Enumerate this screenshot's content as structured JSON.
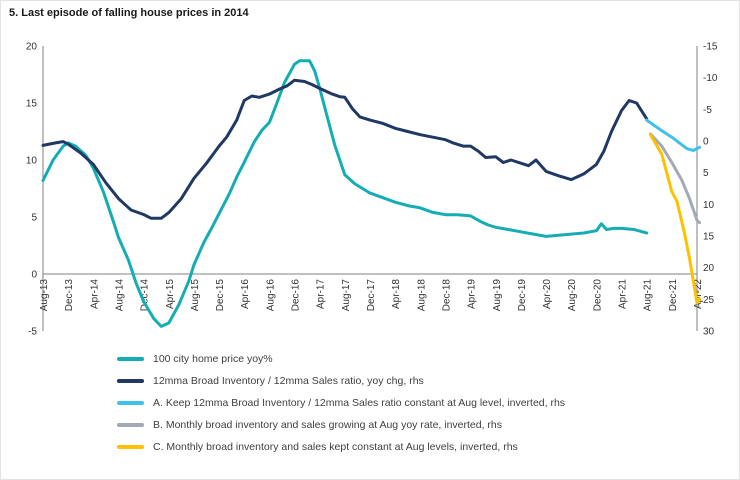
{
  "title": "5. Last episode of falling house prices in 2014",
  "chart_data": {
    "type": "line",
    "title": "5. Last episode of falling house prices in 2014",
    "legend_position": "bottom",
    "grid": false,
    "x_tick_labels": [
      "Aug-13",
      "Dec-13",
      "Apr-14",
      "Aug-14",
      "Dec-14",
      "Apr-15",
      "Aug-15",
      "Dec-15",
      "Apr-16",
      "Aug-16",
      "Dec-16",
      "Apr-17",
      "Aug-17",
      "Dec-17",
      "Apr-18",
      "Aug-18",
      "Dec-18",
      "Apr-19",
      "Aug-19",
      "Dec-19",
      "Apr-20",
      "Aug-20",
      "Dec-20",
      "Apr-21",
      "Aug-21",
      "Dec-21",
      "Apr-22"
    ],
    "left_axis": {
      "ticks": [
        20,
        15,
        10,
        5,
        0,
        -5
      ],
      "max": 20,
      "min": -5
    },
    "right_axis": {
      "ticks": [
        -15,
        -10,
        -5,
        0,
        5,
        10,
        15,
        20,
        25,
        30
      ],
      "max_top": -15,
      "min_bottom": 30,
      "inverted": true
    },
    "series": [
      {
        "name": "100 city home price yoy%",
        "axis": "lhs",
        "color": "#14ADB3",
        "points": [
          [
            0,
            8.2
          ],
          [
            0.4,
            10.0
          ],
          [
            0.8,
            11.2
          ],
          [
            1,
            11.5
          ],
          [
            1.3,
            11.2
          ],
          [
            1.7,
            10.4
          ],
          [
            2,
            9.3
          ],
          [
            2.4,
            7.2
          ],
          [
            2.8,
            4.6
          ],
          [
            3,
            3.2
          ],
          [
            3.4,
            1.2
          ],
          [
            3.7,
            -0.8
          ],
          [
            4,
            -2.4
          ],
          [
            4.4,
            -3.9
          ],
          [
            4.7,
            -4.6
          ],
          [
            5,
            -4.3
          ],
          [
            5.4,
            -2.7
          ],
          [
            5.8,
            -0.6
          ],
          [
            6,
            0.8
          ],
          [
            6.4,
            2.8
          ],
          [
            6.7,
            4.0
          ],
          [
            7,
            5.3
          ],
          [
            7.4,
            7.0
          ],
          [
            7.7,
            8.5
          ],
          [
            8,
            9.8
          ],
          [
            8.4,
            11.6
          ],
          [
            8.7,
            12.6
          ],
          [
            9,
            13.3
          ],
          [
            9.3,
            15.0
          ],
          [
            9.6,
            16.8
          ],
          [
            10,
            18.4
          ],
          [
            10.2,
            18.7
          ],
          [
            10.6,
            18.7
          ],
          [
            10.8,
            17.8
          ],
          [
            11,
            16.3
          ],
          [
            11.3,
            13.8
          ],
          [
            11.6,
            11.3
          ],
          [
            12,
            8.7
          ],
          [
            12.4,
            7.9
          ],
          [
            12.7,
            7.5
          ],
          [
            13,
            7.1
          ],
          [
            13.5,
            6.7
          ],
          [
            14,
            6.3
          ],
          [
            14.5,
            6.0
          ],
          [
            15,
            5.8
          ],
          [
            15.5,
            5.4
          ],
          [
            16,
            5.2
          ],
          [
            16.5,
            5.2
          ],
          [
            17,
            5.1
          ],
          [
            17.4,
            4.6
          ],
          [
            17.7,
            4.3
          ],
          [
            18,
            4.1
          ],
          [
            18.5,
            3.9
          ],
          [
            19,
            3.7
          ],
          [
            19.5,
            3.5
          ],
          [
            20,
            3.3
          ],
          [
            20.5,
            3.4
          ],
          [
            21,
            3.5
          ],
          [
            21.5,
            3.6
          ],
          [
            22,
            3.8
          ],
          [
            22.2,
            4.4
          ],
          [
            22.4,
            3.9
          ],
          [
            22.7,
            4.0
          ],
          [
            23,
            4.0
          ],
          [
            23.5,
            3.9
          ],
          [
            24,
            3.6
          ]
        ]
      },
      {
        "name": "12mma Broad Inventory / 12mma Sales ratio, yoy chg, rhs",
        "axis": "rhs",
        "color": "#1F3864",
        "points": [
          [
            0,
            0.7
          ],
          [
            0.5,
            0.3
          ],
          [
            0.8,
            0.1
          ],
          [
            1,
            0.5
          ],
          [
            1.5,
            1.9
          ],
          [
            2,
            3.7
          ],
          [
            2.5,
            6.6
          ],
          [
            3,
            9.1
          ],
          [
            3.5,
            10.9
          ],
          [
            4,
            11.6
          ],
          [
            4.3,
            12.2
          ],
          [
            4.7,
            12.2
          ],
          [
            5,
            11.3
          ],
          [
            5.5,
            9.1
          ],
          [
            6,
            5.9
          ],
          [
            6.5,
            3.5
          ],
          [
            7,
            0.8
          ],
          [
            7.3,
            -0.6
          ],
          [
            7.7,
            -3.3
          ],
          [
            8,
            -6.4
          ],
          [
            8.3,
            -7.1
          ],
          [
            8.6,
            -6.9
          ],
          [
            9,
            -7.4
          ],
          [
            9.4,
            -8.2
          ],
          [
            9.7,
            -8.7
          ],
          [
            10,
            -9.6
          ],
          [
            10.4,
            -9.4
          ],
          [
            10.7,
            -8.9
          ],
          [
            11,
            -8.3
          ],
          [
            11.5,
            -7.4
          ],
          [
            11.8,
            -7.0
          ],
          [
            12,
            -6.9
          ],
          [
            12.3,
            -5.1
          ],
          [
            12.6,
            -3.8
          ],
          [
            13,
            -3.3
          ],
          [
            13.5,
            -2.8
          ],
          [
            14,
            -2.0
          ],
          [
            14.5,
            -1.5
          ],
          [
            15,
            -1.0
          ],
          [
            15.5,
            -0.6
          ],
          [
            16,
            -0.2
          ],
          [
            16.3,
            0.3
          ],
          [
            16.7,
            0.8
          ],
          [
            17,
            0.8
          ],
          [
            17.3,
            1.6
          ],
          [
            17.6,
            2.6
          ],
          [
            18,
            2.5
          ],
          [
            18.3,
            3.4
          ],
          [
            18.6,
            3.0
          ],
          [
            19,
            3.5
          ],
          [
            19.3,
            3.9
          ],
          [
            19.6,
            3.0
          ],
          [
            20,
            4.8
          ],
          [
            20.5,
            5.5
          ],
          [
            21,
            6.1
          ],
          [
            21.5,
            5.2
          ],
          [
            22,
            3.7
          ],
          [
            22.3,
            1.6
          ],
          [
            22.6,
            -1.5
          ],
          [
            23,
            -4.8
          ],
          [
            23.3,
            -6.4
          ],
          [
            23.6,
            -6.0
          ],
          [
            24,
            -3.5
          ]
        ]
      },
      {
        "name": "A. Keep 12mma Broad Inventory / 12mma Sales ratio constant at Aug level, inverted, rhs",
        "axis": "rhs",
        "color": "#3FC1E9",
        "points": [
          [
            24,
            -3.3
          ],
          [
            24.5,
            -1.9
          ],
          [
            25,
            -0.6
          ],
          [
            25.3,
            0.3
          ],
          [
            25.6,
            1.2
          ],
          [
            25.85,
            1.5
          ],
          [
            26.1,
            1.0
          ]
        ]
      },
      {
        "name": "B. Monthly broad inventory and sales growing at Aug yoy rate, inverted, rhs",
        "axis": "rhs",
        "color": "#A3A9B5",
        "points": [
          [
            24.15,
            -1.1
          ],
          [
            24.6,
            0.8
          ],
          [
            25,
            3.4
          ],
          [
            25.4,
            6.2
          ],
          [
            25.7,
            9.1
          ],
          [
            26,
            12.5
          ],
          [
            26.1,
            12.9
          ]
        ]
      },
      {
        "name": "C. Monthly broad inventory and sales kept constant at Aug levels, inverted, rhs",
        "axis": "rhs",
        "color": "#FFC000",
        "points": [
          [
            24.15,
            -1.0
          ],
          [
            24.6,
            2.1
          ],
          [
            25,
            8.0
          ],
          [
            25.2,
            9.5
          ],
          [
            25.5,
            14.5
          ],
          [
            25.7,
            18.5
          ],
          [
            25.9,
            23.2
          ],
          [
            26,
            25.6
          ],
          [
            26.1,
            24.9
          ]
        ]
      }
    ]
  }
}
